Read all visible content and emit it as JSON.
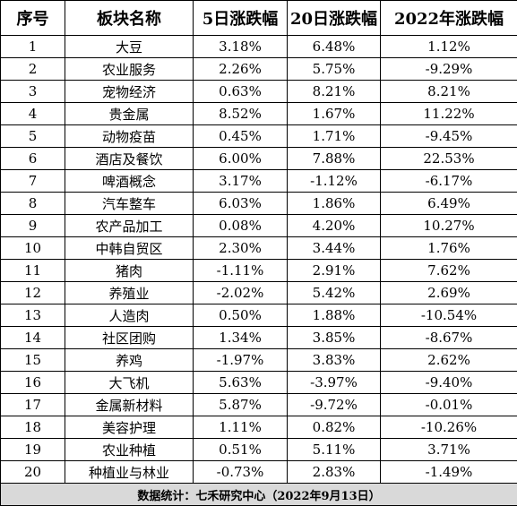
{
  "headers": [
    "序号",
    "板块名称",
    "5日涨跌幅",
    "20日涨跌幅",
    "2022年涨跌幅"
  ],
  "rows": [
    [
      "1",
      "大豆",
      "3.18%",
      "6.48%",
      "1.12%"
    ],
    [
      "2",
      "农业服务",
      "2.26%",
      "5.75%",
      "-9.29%"
    ],
    [
      "3",
      "宠物经济",
      "0.63%",
      "8.21%",
      "8.21%"
    ],
    [
      "4",
      "贵金属",
      "8.52%",
      "1.67%",
      "11.22%"
    ],
    [
      "5",
      "动物疫苗",
      "0.45%",
      "1.71%",
      "-9.45%"
    ],
    [
      "6",
      "酒店及餐饮",
      "6.00%",
      "7.88%",
      "22.53%"
    ],
    [
      "7",
      "啤酒概念",
      "3.17%",
      "-1.12%",
      "-6.17%"
    ],
    [
      "8",
      "汽车整车",
      "6.03%",
      "1.86%",
      "6.49%"
    ],
    [
      "9",
      "农产品加工",
      "0.08%",
      "4.20%",
      "10.27%"
    ],
    [
      "10",
      "中韩自贸区",
      "2.30%",
      "3.44%",
      "1.76%"
    ],
    [
      "11",
      "猪肉",
      "-1.11%",
      "2.91%",
      "7.62%"
    ],
    [
      "12",
      "养殖业",
      "-2.02%",
      "5.42%",
      "2.69%"
    ],
    [
      "13",
      "人造肉",
      "0.50%",
      "1.88%",
      "-10.54%"
    ],
    [
      "14",
      "社区团购",
      "1.34%",
      "3.85%",
      "-8.67%"
    ],
    [
      "15",
      "养鸡",
      "-1.97%",
      "3.83%",
      "2.62%"
    ],
    [
      "16",
      "大飞机",
      "5.63%",
      "-3.97%",
      "-9.40%"
    ],
    [
      "17",
      "金属新材料",
      "5.87%",
      "-9.72%",
      "-0.01%"
    ],
    [
      "18",
      "美容护理",
      "1.11%",
      "0.82%",
      "-10.26%"
    ],
    [
      "19",
      "农业种植",
      "0.51%",
      "5.11%",
      "3.71%"
    ],
    [
      "20",
      "种植业与林业",
      "-0.73%",
      "2.83%",
      "-1.49%"
    ]
  ],
  "footer": "数据统计：七禾研究中心（2022年9月13日）"
}
